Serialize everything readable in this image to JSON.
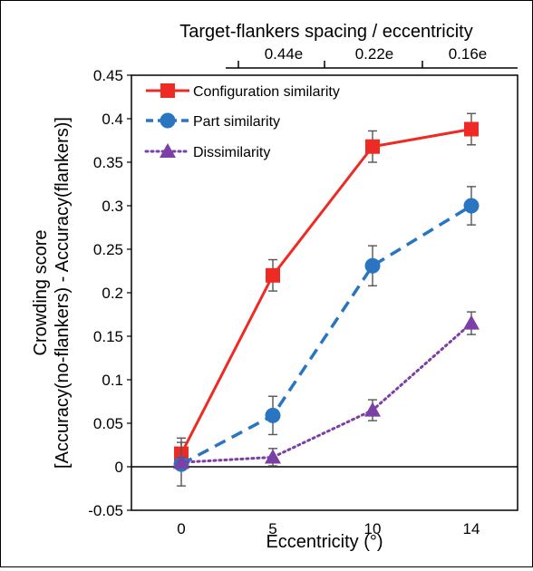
{
  "chart_data": {
    "type": "line",
    "title": "",
    "xlabel": "Eccentricity (°)",
    "ylabel_lines": [
      "Crowding score",
      "[Accuracy(no-flankers) - Accuracy(flankers)]"
    ],
    "top_axis": {
      "label": "Target-flankers spacing / eccentricity",
      "tick_labels": [
        "0.44e",
        "0.22e",
        "0.16e"
      ]
    },
    "categories": [
      "0",
      "5",
      "10",
      "14"
    ],
    "ylim": [
      -0.05,
      0.45
    ],
    "yticks": [
      "-0.05",
      "0",
      "0.05",
      "0.1",
      "0.15",
      "0.2",
      "0.25",
      "0.3",
      "0.35",
      "0.4",
      "0.45"
    ],
    "grid": false,
    "legend_position": "top-left",
    "series": [
      {
        "name": "Configuration similarity",
        "values": [
          0.015,
          0.22,
          0.368,
          0.388
        ],
        "errors": [
          0.018,
          0.018,
          0.018,
          0.018
        ],
        "color": "#ed2b24",
        "style": "solid",
        "marker": "square"
      },
      {
        "name": "Part similarity",
        "values": [
          0.003,
          0.059,
          0.231,
          0.3
        ],
        "errors": [
          0.025,
          0.022,
          0.023,
          0.022
        ],
        "color": "#2a75c1",
        "style": "dashed",
        "marker": "circle"
      },
      {
        "name": "Dissimilarity",
        "values": [
          0.005,
          0.011,
          0.065,
          0.165
        ],
        "errors": [
          0.006,
          0.01,
          0.012,
          0.013
        ],
        "color": "#7b3fa5",
        "style": "dotted",
        "marker": "triangle"
      }
    ]
  }
}
